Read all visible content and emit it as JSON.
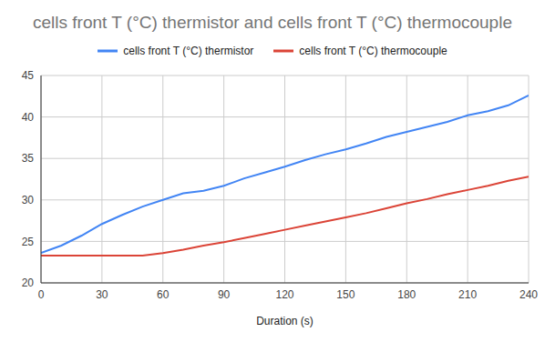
{
  "chart_data": {
    "type": "line",
    "title": "cells front T (°C) thermistor and cells front T (°C) thermocouple",
    "x_label": "Duration (s)",
    "x": [
      0,
      10,
      20,
      30,
      40,
      50,
      60,
      70,
      80,
      90,
      100,
      110,
      120,
      130,
      140,
      150,
      160,
      170,
      180,
      190,
      200,
      210,
      220,
      230,
      240
    ],
    "series": [
      {
        "name": "cells front T (°C) thermistor",
        "color": "#4285f4",
        "values": [
          23.6,
          24.5,
          25.7,
          27.1,
          28.2,
          29.2,
          30.0,
          30.8,
          31.1,
          31.7,
          32.6,
          33.3,
          34.0,
          34.8,
          35.5,
          36.1,
          36.8,
          37.6,
          38.2,
          38.8,
          39.4,
          40.2,
          40.7,
          41.4,
          42.6
        ]
      },
      {
        "name": "cells front T (°C) thermocouple",
        "color": "#db4437",
        "values": [
          23.3,
          23.3,
          23.3,
          23.3,
          23.3,
          23.3,
          23.6,
          24.0,
          24.5,
          24.9,
          25.4,
          25.9,
          26.4,
          26.9,
          27.4,
          27.9,
          28.4,
          29.0,
          29.6,
          30.1,
          30.7,
          31.2,
          31.7,
          32.3,
          32.8
        ]
      }
    ],
    "xlim": [
      0,
      240
    ],
    "xticks": [
      0,
      30,
      60,
      90,
      120,
      150,
      180,
      210,
      240
    ],
    "ylim": [
      20,
      45
    ],
    "yticks": [
      20,
      25,
      30,
      35,
      40,
      45
    ],
    "grid": true,
    "legend": "top"
  }
}
